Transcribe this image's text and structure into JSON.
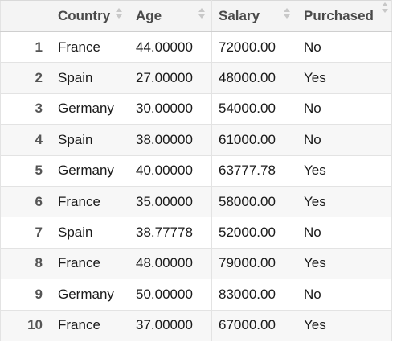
{
  "table": {
    "columns": [
      "",
      "Country",
      "Age",
      "Salary",
      "Purchased"
    ],
    "rows": [
      {
        "index": "1",
        "country": "France",
        "age": "44.00000",
        "salary": "72000.00",
        "purchased": "No"
      },
      {
        "index": "2",
        "country": "Spain",
        "age": "27.00000",
        "salary": "48000.00",
        "purchased": "Yes"
      },
      {
        "index": "3",
        "country": "Germany",
        "age": "30.00000",
        "salary": "54000.00",
        "purchased": "No"
      },
      {
        "index": "4",
        "country": "Spain",
        "age": "38.00000",
        "salary": "61000.00",
        "purchased": "No"
      },
      {
        "index": "5",
        "country": "Germany",
        "age": "40.00000",
        "salary": "63777.78",
        "purchased": "Yes"
      },
      {
        "index": "6",
        "country": "France",
        "age": "35.00000",
        "salary": "58000.00",
        "purchased": "Yes"
      },
      {
        "index": "7",
        "country": "Spain",
        "age": "38.77778",
        "salary": "52000.00",
        "purchased": "No"
      },
      {
        "index": "8",
        "country": "France",
        "age": "48.00000",
        "salary": "79000.00",
        "purchased": "Yes"
      },
      {
        "index": "9",
        "country": "Germany",
        "age": "50.00000",
        "salary": "83000.00",
        "purchased": "No"
      },
      {
        "index": "10",
        "country": "France",
        "age": "37.00000",
        "salary": "67000.00",
        "purchased": "Yes"
      }
    ]
  },
  "icons": {
    "sort": "sort-arrows-icon"
  },
  "colors": {
    "header_bg": "#f4f4f4",
    "row_alt_bg": "#f7f7f7",
    "border": "#e3e3e3"
  }
}
